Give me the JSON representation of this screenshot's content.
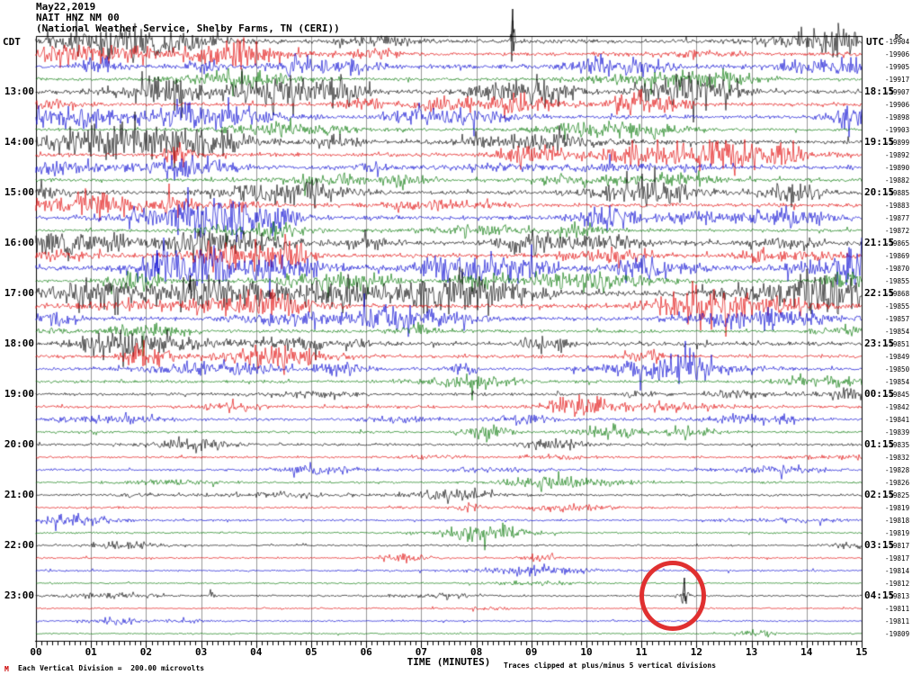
{
  "header": {
    "date": "May22,2019",
    "station": "NAIT HNZ NM 00",
    "description": "(National Weather Service, Shelby Farms, TN (CERI))"
  },
  "labels": {
    "left_tz": "CDT",
    "right_tz": "UTC",
    "dc_header": "DC",
    "time_axis": "TIME (MINUTES)"
  },
  "footer": {
    "scale_note": "Each Vertical Division =  200.00 microvolts",
    "clip_note": "Traces clipped at plus/minus 5 vertical divisions",
    "logo_mark": "M"
  },
  "colors": {
    "trace_cycle": [
      "#000000",
      "#e00000",
      "#0000d0",
      "#007500"
    ],
    "grid": "#999999",
    "border": "#000000",
    "annotation": "#e03030"
  },
  "chart_data": {
    "type": "seismogram",
    "title": "NAIT HNZ NM 00 helicorder, May22,2019",
    "xlabel": "TIME (MINUTES)",
    "x_range_minutes": [
      0,
      15
    ],
    "minutes_per_line": 15,
    "x_tick_labels": [
      "00",
      "01",
      "02",
      "03",
      "04",
      "05",
      "06",
      "07",
      "08",
      "09",
      "10",
      "11",
      "12",
      "13",
      "14",
      "15"
    ],
    "minor_ticks_per_minute": 10,
    "left_hour_labels_cdt": [
      "13:00",
      "14:00",
      "15:00",
      "16:00",
      "17:00",
      "18:00",
      "19:00",
      "20:00",
      "21:00",
      "22:00",
      "23:00"
    ],
    "right_hour_labels_utc": [
      "18:15",
      "19:15",
      "20:15",
      "21:15",
      "22:15",
      "23:15",
      "00:15",
      "01:15",
      "02:15",
      "03:15",
      "04:15"
    ],
    "hour_label_first_row_index": 4,
    "hour_label_row_step": 4,
    "dc_values": [
      -19904,
      -19906,
      -19905,
      -19917,
      -19907,
      -19906,
      -19898,
      -19903,
      -19899,
      -19892,
      -19890,
      -19882,
      -19885,
      -19883,
      -19877,
      -19872,
      -19865,
      -19869,
      -19870,
      -19855,
      -19868,
      -19855,
      -19857,
      -19854,
      -19851,
      -19849,
      -19850,
      -19854,
      -19845,
      -19842,
      -19841,
      -19839,
      -19835,
      -19832,
      -19828,
      -19826,
      -19825,
      -19819,
      -19818,
      -19819,
      -19817,
      -19817,
      -19814,
      -19812,
      -19813,
      -19811,
      -19811,
      -19809
    ],
    "noise_levels": [
      3.2,
      2.8,
      3.2,
      2.2,
      3.2,
      2.8,
      3.0,
      2.2,
      3.2,
      3.0,
      2.8,
      2.4,
      3.0,
      2.8,
      3.4,
      2.4,
      3.6,
      3.2,
      3.8,
      2.6,
      4.0,
      3.2,
      3.2,
      2.4,
      3.0,
      2.6,
      2.6,
      2.2,
      2.2,
      2.2,
      2.2,
      1.8,
      1.8,
      1.6,
      1.8,
      1.6,
      1.8,
      1.6,
      1.6,
      1.4,
      1.4,
      1.3,
      1.4,
      1.2,
      1.3,
      1.2,
      1.3,
      1.2
    ],
    "burst_counts": [
      7,
      6,
      7,
      4,
      8,
      6,
      6,
      4,
      7,
      7,
      6,
      4,
      6,
      6,
      7,
      4,
      8,
      7,
      8,
      5,
      9,
      7,
      7,
      4,
      6,
      5,
      5,
      3,
      4,
      4,
      4,
      3,
      3,
      3,
      3,
      2,
      3,
      2,
      2,
      2,
      2,
      2,
      2,
      1,
      2,
      1,
      2,
      1
    ],
    "events": [
      {
        "row": 0,
        "minute": 8.66,
        "amp": 36,
        "width": 2
      },
      {
        "row": 18,
        "minute": 2.2,
        "amp": 20,
        "width": 30
      },
      {
        "row": 20,
        "minute": 2.8,
        "amp": 20,
        "width": 35
      },
      {
        "row": 44,
        "minute": 3.2,
        "amp": 6,
        "width": 4
      },
      {
        "row": 44,
        "minute": 11.78,
        "amp": 20,
        "width": 6
      }
    ],
    "annotation_circle": {
      "row": 44,
      "minute": 11.57
    },
    "scale_note": "Each Vertical Division =  200.00 microvolts",
    "clip_note": "Traces clipped at plus/minus 5 vertical divisions"
  }
}
